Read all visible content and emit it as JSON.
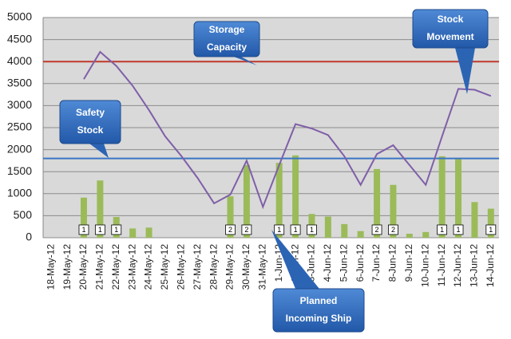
{
  "chart_data": {
    "type": "bar_line",
    "categories": [
      "18-May-12",
      "19-May-12",
      "20-May-12",
      "21-May-12",
      "22-May-12",
      "23-May-12",
      "24-May-12",
      "25-May-12",
      "26-May-12",
      "27-May-12",
      "28-May-12",
      "29-May-12",
      "30-May-12",
      "31-May-12",
      "1-Jun-12",
      "2-Jun-12",
      "3-Jun-12",
      "4-Jun-12",
      "5-Jun-12",
      "6-Jun-12",
      "7-Jun-12",
      "8-Jun-12",
      "9-Jun-12",
      "10-Jun-12",
      "11-Jun-12",
      "12-Jun-12",
      "13-Jun-12",
      "14-Jun-12"
    ],
    "bars": {
      "color": "#9bbb59",
      "values": [
        null,
        null,
        910,
        1300,
        470,
        210,
        230,
        null,
        null,
        null,
        null,
        940,
        1650,
        null,
        1700,
        1870,
        540,
        480,
        310,
        150,
        1560,
        1200,
        90,
        130,
        1850,
        1800,
        810,
        660
      ],
      "box_labels": [
        null,
        null,
        1,
        1,
        1,
        null,
        null,
        null,
        null,
        null,
        null,
        2,
        2,
        null,
        1,
        1,
        1,
        null,
        null,
        null,
        2,
        2,
        null,
        null,
        1,
        1,
        null,
        1
      ]
    },
    "line": {
      "color": "#7f5fa8",
      "values": [
        null,
        null,
        3600,
        4220,
        3900,
        3450,
        2900,
        2300,
        1850,
        1350,
        780,
        980,
        1750,
        700,
        1650,
        2580,
        2480,
        2330,
        1850,
        1200,
        1900,
        2100,
        1650,
        1200,
        2300,
        3380,
        3360,
        3220
      ]
    },
    "reference_lines": [
      {
        "value": 4000,
        "color": "#c0392b"
      },
      {
        "value": 1800,
        "color": "#3a75c4"
      }
    ],
    "ylim": [
      0,
      5000
    ],
    "yticks": [
      0,
      500,
      1000,
      1500,
      2000,
      2500,
      3000,
      3500,
      4000,
      4500,
      5000
    ],
    "grid": true,
    "annotations": [
      {
        "lines": [
          "Storage",
          "Capacity"
        ]
      },
      {
        "lines": [
          "Safety",
          "Stock"
        ]
      },
      {
        "lines": [
          "Stock",
          "Movement"
        ]
      },
      {
        "lines": [
          "Planned",
          "Incoming Ship"
        ]
      }
    ]
  }
}
